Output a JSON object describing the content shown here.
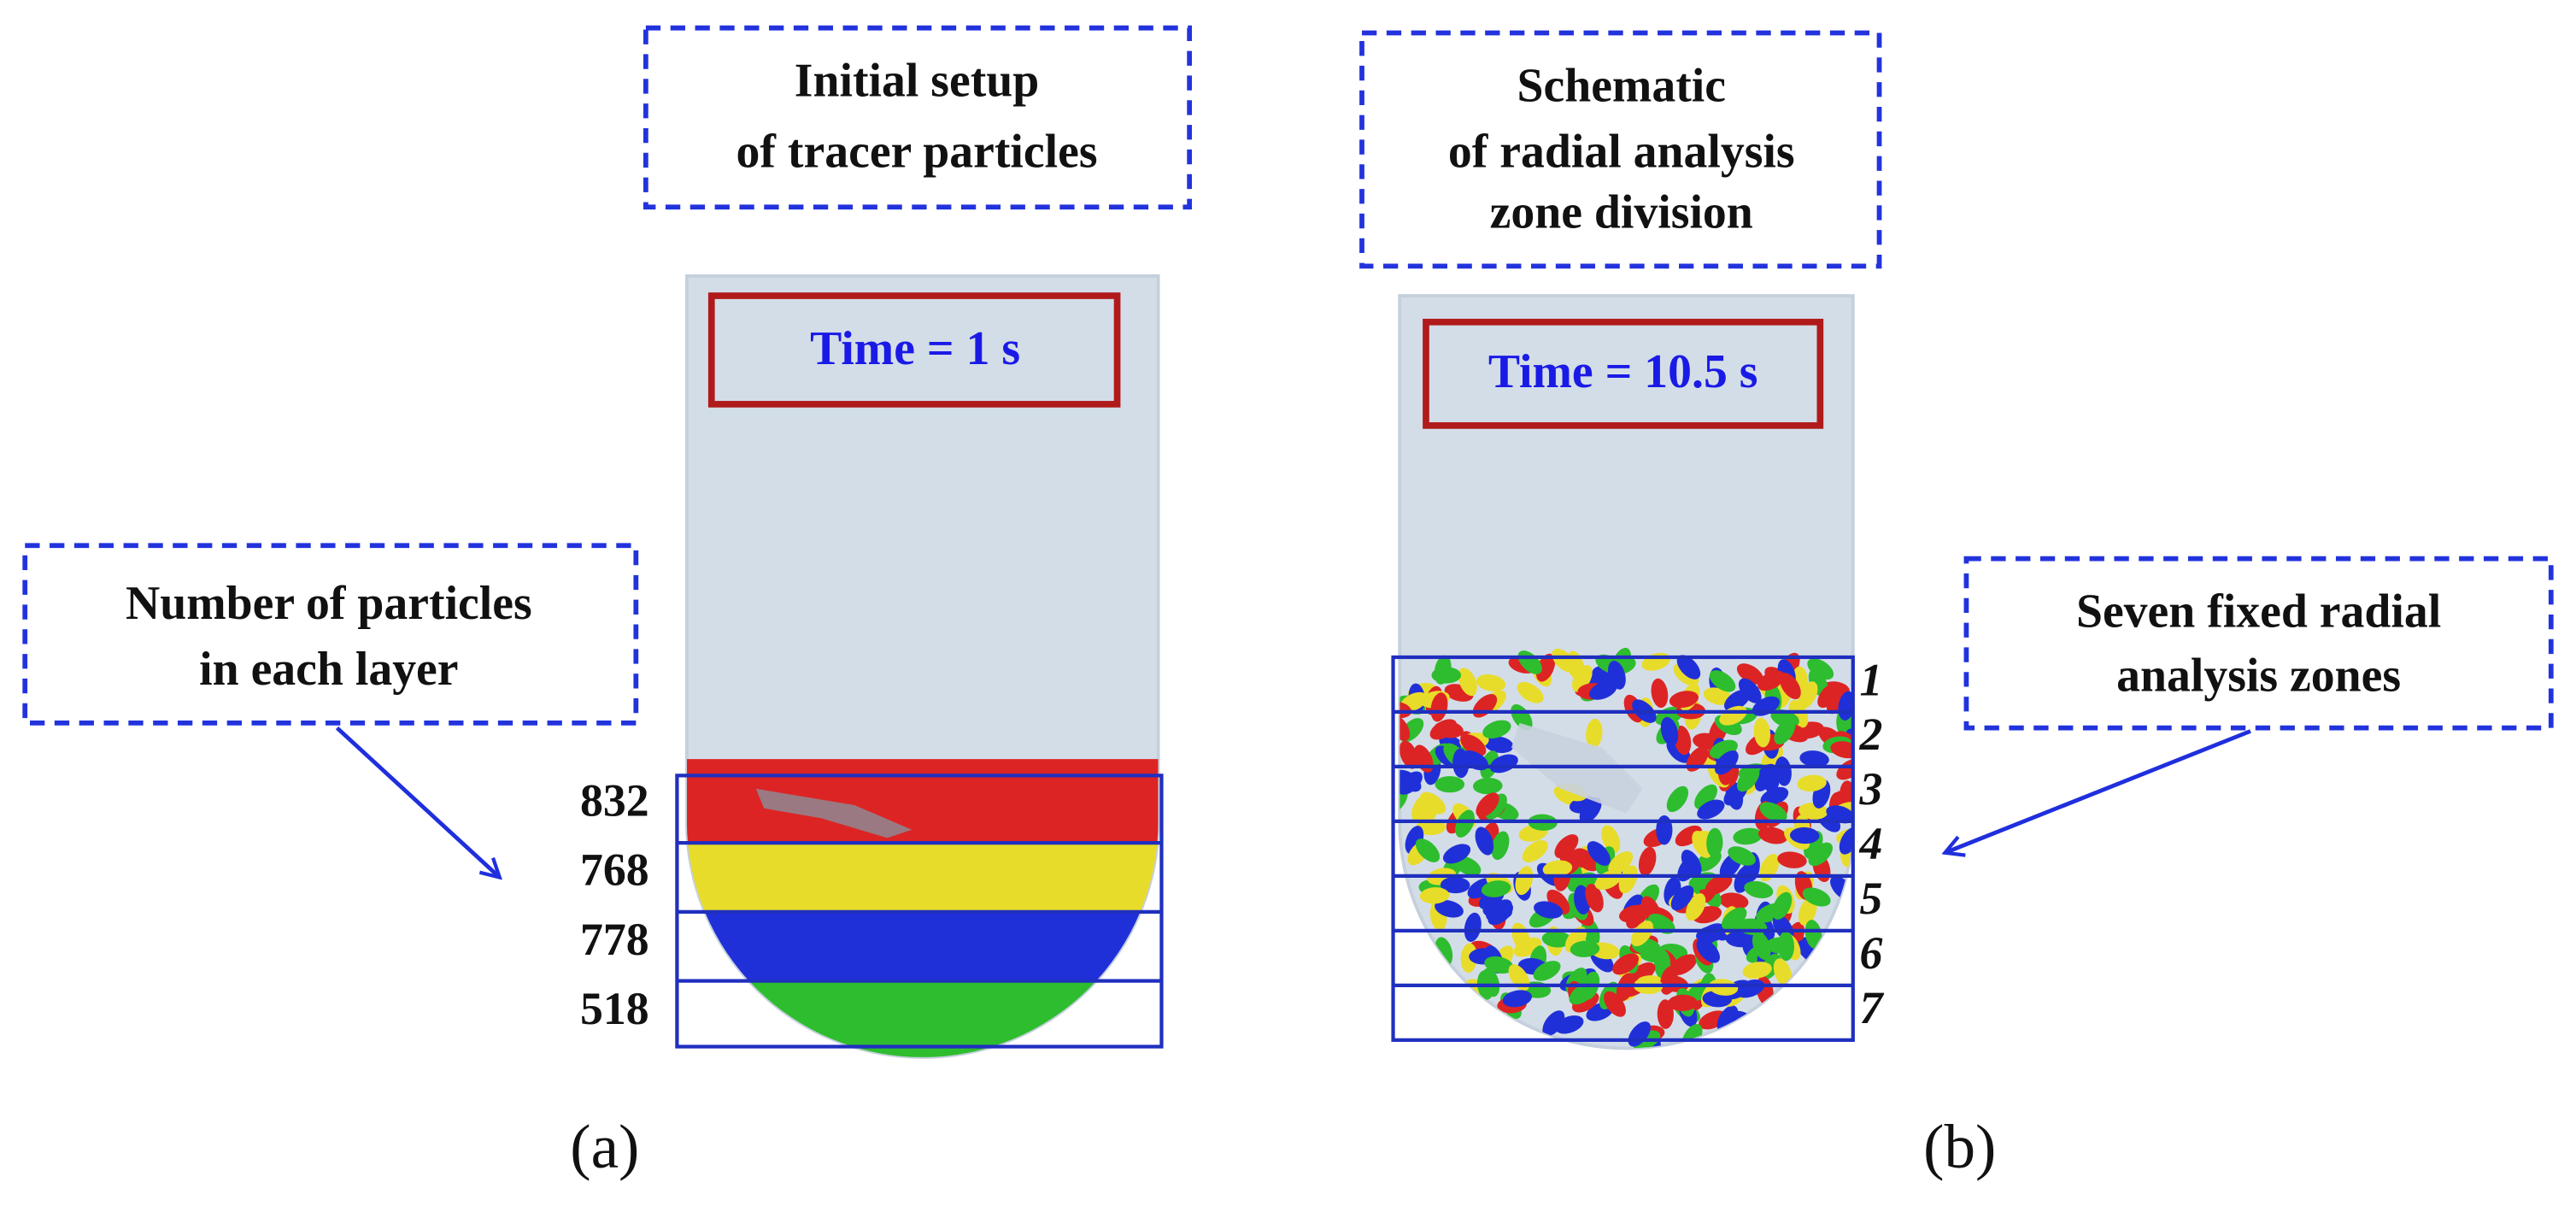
{
  "panels": [
    {
      "label": "(a)",
      "title_lines": [
        "Initial setup",
        "of tracer particles"
      ],
      "time": "Time = 1 s",
      "callout_lines": [
        "Number of particles",
        "in each layer"
      ],
      "layers": [
        832,
        768,
        778,
        518
      ]
    },
    {
      "label": "(b)",
      "title_lines": [
        "Schematic",
        "of radial analysis",
        "zone division"
      ],
      "time": "Time = 10.5 s",
      "callout_lines": [
        "Seven fixed radial",
        "analysis zones"
      ],
      "zones": [
        1,
        2,
        3,
        4,
        5,
        6,
        7
      ]
    }
  ]
}
